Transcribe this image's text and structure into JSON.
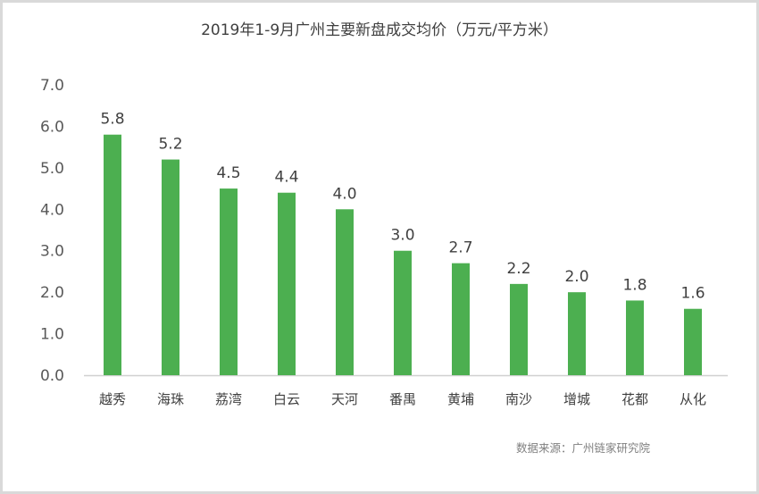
{
  "chart_data": {
    "type": "bar",
    "title": "2019年1-9月广州主要新盘成交均价（万元/平方米）",
    "categories": [
      "越秀",
      "海珠",
      "荔湾",
      "白云",
      "天河",
      "番禺",
      "黄埔",
      "南沙",
      "增城",
      "花都",
      "从化"
    ],
    "values": [
      5.8,
      5.2,
      4.5,
      4.4,
      4.0,
      3.0,
      2.7,
      2.2,
      2.0,
      1.8,
      1.6
    ],
    "data_labels": [
      "5.8",
      "5.2",
      "4.5",
      "4.4",
      "4.0",
      "3.0",
      "2.7",
      "2.2",
      "2.0",
      "1.8",
      "1.6"
    ],
    "yticks": [
      "0.0",
      "1.0",
      "2.0",
      "3.0",
      "4.0",
      "5.0",
      "6.0",
      "7.0"
    ],
    "ylim": [
      0,
      7
    ],
    "xlabel": "",
    "ylabel": "",
    "grid": false,
    "bar_color": "#4caf50",
    "source": "数据来源：广州链家研究院"
  }
}
